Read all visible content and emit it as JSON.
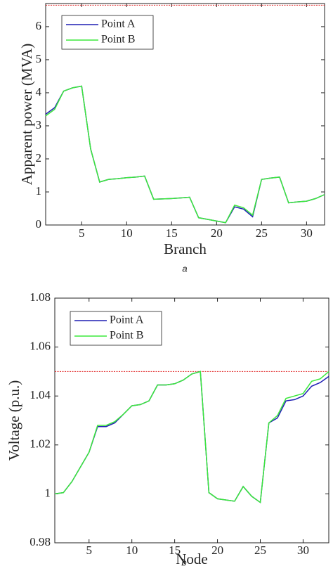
{
  "chart_data": [
    {
      "type": "line",
      "xlabel": "Branch",
      "ylabel": "Apparent power (MVA)",
      "caption": "a",
      "x": [
        1,
        2,
        3,
        4,
        5,
        6,
        7,
        8,
        9,
        10,
        11,
        12,
        13,
        14,
        15,
        16,
        17,
        18,
        19,
        20,
        21,
        22,
        23,
        24,
        25,
        26,
        27,
        28,
        29,
        30,
        31,
        32
      ],
      "series": [
        {
          "name": "Point A",
          "color": "#1f1fb4",
          "values": [
            3.35,
            3.55,
            4.05,
            4.15,
            4.2,
            2.3,
            1.3,
            1.38,
            1.4,
            1.43,
            1.45,
            1.48,
            0.78,
            0.79,
            0.8,
            0.82,
            0.84,
            0.22,
            0.17,
            0.12,
            0.07,
            0.55,
            0.48,
            0.25,
            1.38,
            1.42,
            1.45,
            0.67,
            0.7,
            0.72,
            0.8,
            0.92
          ]
        },
        {
          "name": "Point B",
          "color": "#3be83b",
          "values": [
            3.3,
            3.5,
            4.05,
            4.15,
            4.2,
            2.3,
            1.3,
            1.38,
            1.4,
            1.43,
            1.45,
            1.48,
            0.78,
            0.79,
            0.8,
            0.82,
            0.84,
            0.22,
            0.17,
            0.12,
            0.07,
            0.6,
            0.52,
            0.3,
            1.38,
            1.42,
            1.45,
            0.67,
            0.7,
            0.72,
            0.8,
            0.92
          ]
        }
      ],
      "hline": 6.65,
      "hline_color": "#e02020",
      "xlim": [
        1,
        32
      ],
      "ylim": [
        0,
        6.7
      ],
      "xticks": [
        5,
        10,
        15,
        20,
        25,
        30
      ],
      "yticks": [
        0,
        1,
        2,
        3,
        4,
        5,
        6
      ],
      "legend": "upper left"
    },
    {
      "type": "line",
      "xlabel": "Node",
      "ylabel": "Voltage (p.u.)",
      "caption": "b",
      "x": [
        1,
        2,
        3,
        4,
        5,
        6,
        7,
        8,
        9,
        10,
        11,
        12,
        13,
        14,
        15,
        16,
        17,
        18,
        19,
        20,
        21,
        22,
        23,
        24,
        25,
        26,
        27,
        28,
        29,
        30,
        31,
        32,
        33
      ],
      "series": [
        {
          "name": "Point A",
          "color": "#1f1fb4",
          "values": [
            1.0,
            1.0005,
            1.005,
            1.011,
            1.017,
            1.0275,
            1.0275,
            1.029,
            1.0325,
            1.036,
            1.0365,
            1.038,
            1.0445,
            1.0445,
            1.045,
            1.0465,
            1.049,
            1.05,
            1.0005,
            0.998,
            0.9975,
            0.997,
            1.003,
            0.999,
            0.9965,
            1.029,
            1.031,
            1.038,
            1.0385,
            1.04,
            1.044,
            1.0455,
            1.048
          ]
        },
        {
          "name": "Point B",
          "color": "#3be83b",
          "values": [
            1.0,
            1.0005,
            1.005,
            1.011,
            1.017,
            1.028,
            1.028,
            1.0295,
            1.0325,
            1.036,
            1.0365,
            1.038,
            1.0445,
            1.0445,
            1.045,
            1.0465,
            1.049,
            1.05,
            1.0005,
            0.998,
            0.9975,
            0.997,
            1.003,
            0.999,
            0.9965,
            1.029,
            1.032,
            1.039,
            1.04,
            1.041,
            1.046,
            1.047,
            1.05
          ]
        }
      ],
      "hline": 1.05,
      "hline_color": "#e02020",
      "xlim": [
        1,
        33
      ],
      "ylim": [
        0.98,
        1.08
      ],
      "xticks": [
        5,
        10,
        15,
        20,
        25,
        30
      ],
      "yticks": [
        0.98,
        1,
        1.02,
        1.04,
        1.06,
        1.08
      ],
      "legend": "upper left"
    }
  ]
}
